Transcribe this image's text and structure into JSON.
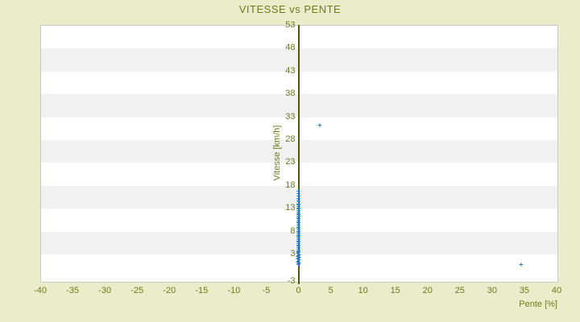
{
  "page": {
    "background_color": "#e9edca",
    "text_color": "#6e7b1e",
    "axis_line_color": "#4f5804",
    "band_color": "#f1f1f1",
    "plot_border_color": "#c9c9c9",
    "marker_color": "#2e7cba"
  },
  "chart_data": {
    "type": "scatter",
    "title": "VITESSE vs PENTE",
    "xlabel": "Pente [%]",
    "ylabel": "Vitesse [km/h]",
    "xlim": [
      -40,
      40
    ],
    "ylim": [
      -3,
      53
    ],
    "x_ticks": [
      -40,
      -35,
      -30,
      -25,
      -20,
      -15,
      -10,
      -5,
      0,
      5,
      10,
      15,
      20,
      25,
      30,
      35,
      40
    ],
    "y_ticks": [
      53,
      48,
      43,
      38,
      33,
      28,
      23,
      18,
      13,
      8,
      3,
      -3
    ],
    "grid": "horizontal-alternating-bands",
    "legend": "none",
    "marker": "+",
    "points": [
      [
        0,
        0.5
      ],
      [
        0,
        0.7
      ],
      [
        0.1,
        0.9
      ],
      [
        -0.1,
        1.1
      ],
      [
        0,
        1.3
      ],
      [
        0.1,
        1.5
      ],
      [
        -0.1,
        1.7
      ],
      [
        0,
        1.9
      ],
      [
        0.1,
        2.1
      ],
      [
        -0.1,
        2.3
      ],
      [
        0,
        2.5
      ],
      [
        0.1,
        2.7
      ],
      [
        -0.1,
        2.9
      ],
      [
        0,
        3.1
      ],
      [
        0,
        3.3
      ],
      [
        0,
        3.6
      ],
      [
        0,
        3.9
      ],
      [
        0,
        4.2
      ],
      [
        0,
        4.5
      ],
      [
        0,
        4.8
      ],
      [
        0,
        5.1
      ],
      [
        0,
        5.4
      ],
      [
        0,
        5.7
      ],
      [
        0,
        6.0
      ],
      [
        0,
        6.3
      ],
      [
        0,
        6.6
      ],
      [
        0,
        6.9
      ],
      [
        0,
        7.2
      ],
      [
        0,
        7.5
      ],
      [
        0,
        7.8
      ],
      [
        0,
        8.1
      ],
      [
        0,
        8.4
      ],
      [
        0,
        8.7
      ],
      [
        0,
        9.0
      ],
      [
        0,
        9.3
      ],
      [
        0,
        9.6
      ],
      [
        0,
        9.9
      ],
      [
        0,
        10.2
      ],
      [
        0,
        10.5
      ],
      [
        0,
        10.8
      ],
      [
        0,
        11.1
      ],
      [
        0,
        11.4
      ],
      [
        0,
        11.7
      ],
      [
        0,
        12.0
      ],
      [
        0,
        12.3
      ],
      [
        0,
        12.6
      ],
      [
        0,
        12.9
      ],
      [
        0,
        13.2
      ],
      [
        0,
        13.5
      ],
      [
        0,
        13.8
      ],
      [
        0,
        14.2
      ],
      [
        0,
        14.6
      ],
      [
        0,
        15.0
      ],
      [
        0,
        15.5
      ],
      [
        0,
        16.0
      ],
      [
        0,
        16.5
      ],
      [
        3.3,
        31.0
      ],
      [
        34.5,
        0.6
      ]
    ]
  }
}
